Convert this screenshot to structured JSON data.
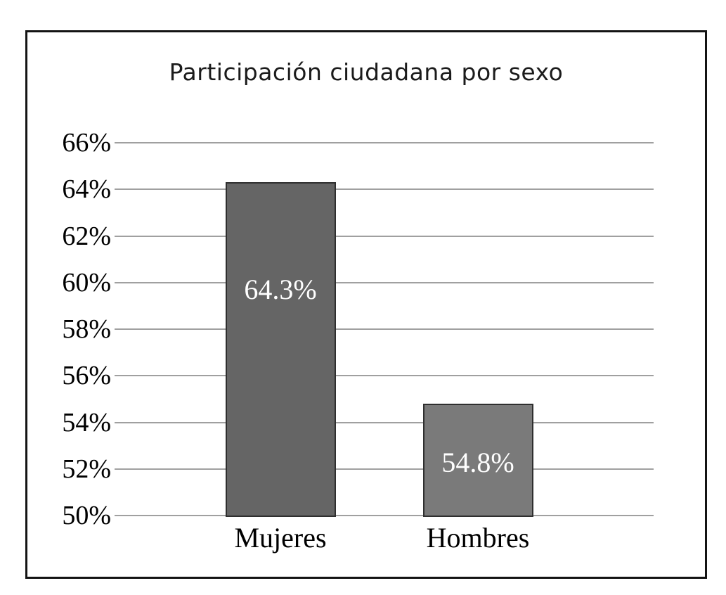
{
  "window": {
    "background_color": "#ffffff",
    "frame_border_color": "#141414"
  },
  "chart_data": {
    "type": "bar",
    "title": "Participación ciudadana por sexo",
    "categories": [
      "Mujeres",
      "Hombres"
    ],
    "values": [
      64.3,
      54.8
    ],
    "value_labels": [
      "64.3%",
      "54.8%"
    ],
    "bar_colors": [
      "#656565",
      "#7a7a7a"
    ],
    "bar_border_color": "#2f2f2f",
    "value_label_color": "#ffffff",
    "xlabel": "",
    "ylabel": "",
    "ylim": [
      50,
      66
    ],
    "y_ticks": [
      {
        "value": 66,
        "label": "66%"
      },
      {
        "value": 64,
        "label": "64%"
      },
      {
        "value": 62,
        "label": "62%"
      },
      {
        "value": 60,
        "label": "60%"
      },
      {
        "value": 58,
        "label": "58%"
      },
      {
        "value": 56,
        "label": "56%"
      },
      {
        "value": 54,
        "label": "54%"
      },
      {
        "value": 52,
        "label": "52%"
      },
      {
        "value": 50,
        "label": "50%"
      }
    ],
    "grid": true,
    "gridline_color": "#a0a0a0",
    "legend": "none",
    "value_label_vertical_fraction": [
      0.32,
      0.52
    ]
  }
}
